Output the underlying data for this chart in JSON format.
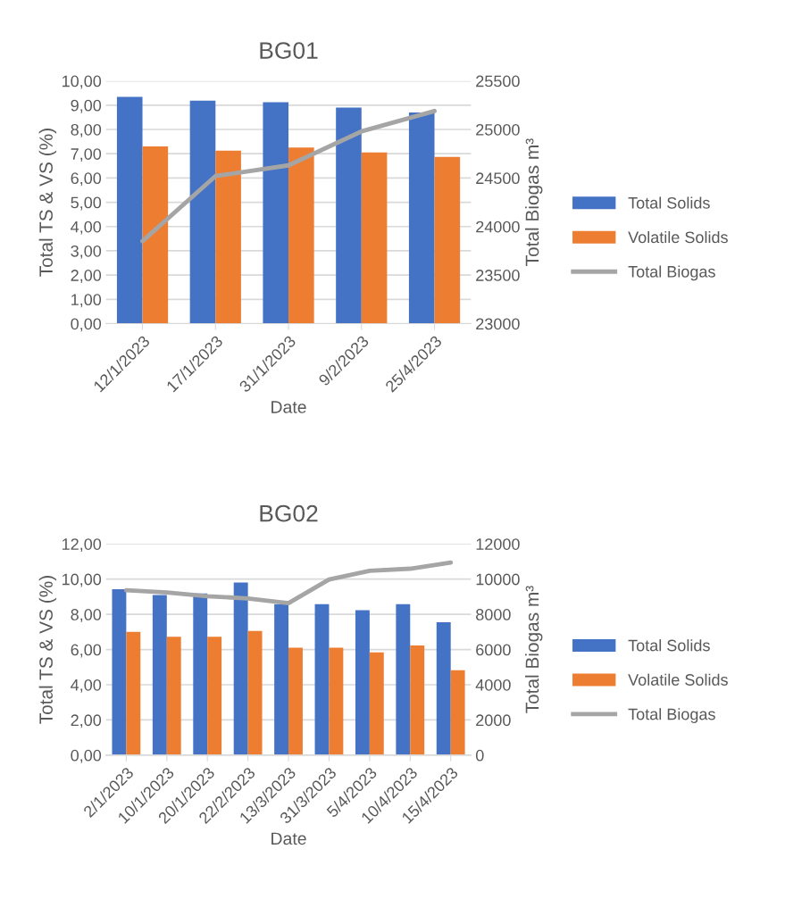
{
  "chart_data": [
    {
      "type": "bar",
      "title": "BG01",
      "xlabel": "Date",
      "ylabel": "Total TS & VS (%)",
      "y2label": "Total Biogas m³",
      "categories": [
        "12/1/2023",
        "17/1/2023",
        "31/1/2023",
        "9/2/2023",
        "25/4/2023"
      ],
      "series": [
        {
          "name": "Total Solids",
          "color": "#4472c4",
          "values": [
            9.34,
            9.19,
            9.12,
            8.9,
            8.7
          ]
        },
        {
          "name": "Volatile Solids",
          "color": "#ed7d31",
          "values": [
            7.3,
            7.13,
            7.26,
            7.05,
            6.87
          ]
        },
        {
          "name": "Total Biogas",
          "color": "#a5a5a5",
          "type": "line",
          "axis": "y2",
          "values": [
            23850,
            24520,
            24630,
            24980,
            25190
          ]
        }
      ],
      "ylim": [
        0,
        10
      ],
      "yticks": [
        {
          "value": 0,
          "label": "0,00"
        },
        {
          "value": 1,
          "label": "1,00"
        },
        {
          "value": 2,
          "label": "2,00"
        },
        {
          "value": 3,
          "label": "3,00"
        },
        {
          "value": 4,
          "label": "4,00"
        },
        {
          "value": 5,
          "label": "5,00"
        },
        {
          "value": 6,
          "label": "6,00"
        },
        {
          "value": 7,
          "label": "7,00"
        },
        {
          "value": 8,
          "label": "8,00"
        },
        {
          "value": 9,
          "label": "9,00"
        },
        {
          "value": 10,
          "label": "10,00"
        }
      ],
      "y2lim": [
        23000,
        25500
      ],
      "y2ticks": [
        23000,
        23500,
        24000,
        24500,
        25000,
        25500
      ],
      "grid": "y",
      "legend": "right"
    },
    {
      "type": "bar",
      "title": "BG02",
      "xlabel": "Date",
      "ylabel": "Total TS & VS (%)",
      "y2label": "Total Biogas m³",
      "categories": [
        "2/1/2023",
        "10/1/2023",
        "20/1/2023",
        "22/2/2023",
        "13/3/2023",
        "31/3/2023",
        "5/4/2023",
        "10/4/2023",
        "15/4/2023"
      ],
      "series": [
        {
          "name": "Total Solids",
          "color": "#4472c4",
          "values": [
            9.42,
            9.1,
            9.19,
            9.8,
            8.58,
            8.58,
            8.23,
            8.58,
            7.55
          ]
        },
        {
          "name": "Volatile Solids",
          "color": "#ed7d31",
          "values": [
            7.01,
            6.72,
            6.72,
            7.06,
            6.1,
            6.1,
            5.84,
            6.23,
            4.83
          ]
        },
        {
          "name": "Total Biogas",
          "color": "#a5a5a5",
          "type": "line",
          "axis": "y2",
          "values": [
            9370,
            9240,
            9030,
            8900,
            8630,
            9980,
            10470,
            10590,
            10940
          ]
        }
      ],
      "ylim": [
        0,
        12
      ],
      "yticks": [
        {
          "value": 0,
          "label": "0,00"
        },
        {
          "value": 2,
          "label": "2,00"
        },
        {
          "value": 4,
          "label": "4,00"
        },
        {
          "value": 6,
          "label": "6,00"
        },
        {
          "value": 8,
          "label": "8,00"
        },
        {
          "value": 10,
          "label": "10,00"
        },
        {
          "value": 12,
          "label": "12,00"
        }
      ],
      "y2lim": [
        0,
        12000
      ],
      "y2ticks": [
        0,
        2000,
        4000,
        6000,
        8000,
        10000,
        12000
      ],
      "grid": "y",
      "legend": "right"
    }
  ]
}
